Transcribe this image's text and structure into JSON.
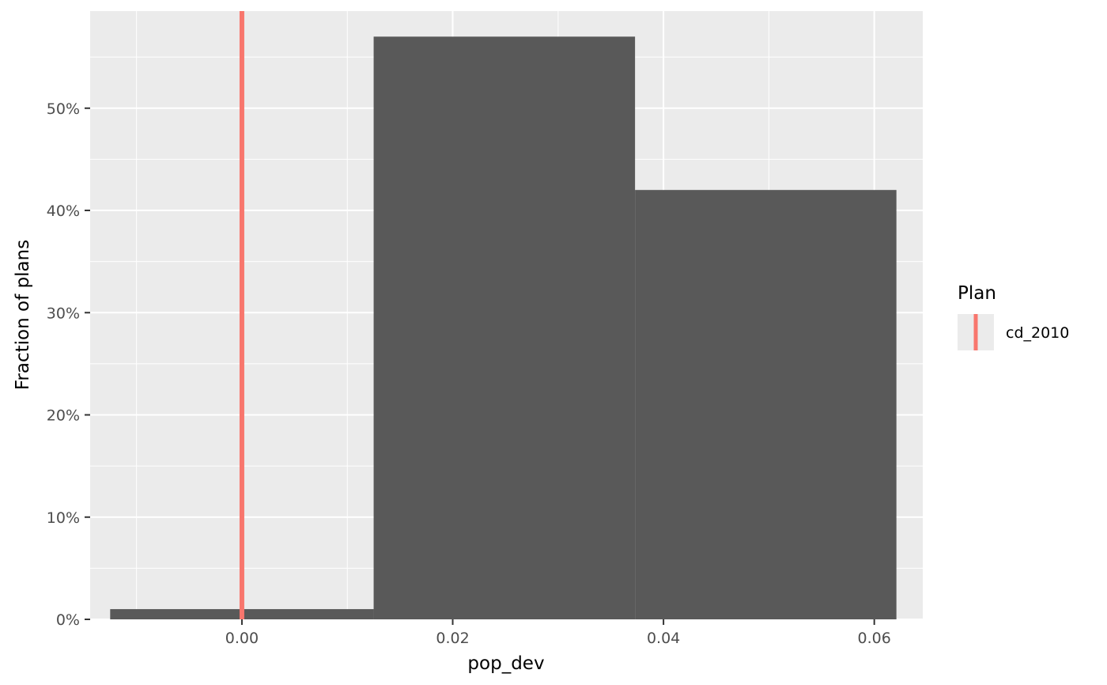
{
  "chart_data": {
    "type": "bar",
    "xlabel": "pop_dev",
    "ylabel": "Fraction of plans",
    "xlim": [
      -0.0144,
      0.0646
    ],
    "ylim": [
      0,
      0.595
    ],
    "x_ticks": [
      0.0,
      0.02,
      0.04,
      0.06
    ],
    "x_tick_labels": [
      "0.00",
      "0.02",
      "0.04",
      "0.06"
    ],
    "y_ticks": [
      0,
      0.1,
      0.2,
      0.3,
      0.4,
      0.5
    ],
    "y_tick_labels": [
      "0%",
      "10%",
      "20%",
      "30%",
      "40%",
      "50%"
    ],
    "bins": [
      {
        "x_start": -0.0125,
        "x_end": 0.0125,
        "value": 0.01
      },
      {
        "x_start": 0.0125,
        "x_end": 0.0373,
        "value": 0.57
      },
      {
        "x_start": 0.0373,
        "x_end": 0.0621,
        "value": 0.42
      }
    ],
    "reference_lines": [
      {
        "x": 0.0,
        "name": "cd_2010",
        "color": "#F8766D"
      }
    ],
    "bar_color": "#595959",
    "panel_background": "#EBEBEB",
    "grid": true,
    "legend": {
      "title": "Plan",
      "position": "right",
      "entries": [
        {
          "label": "cd_2010",
          "color": "#F8766D"
        }
      ]
    }
  }
}
